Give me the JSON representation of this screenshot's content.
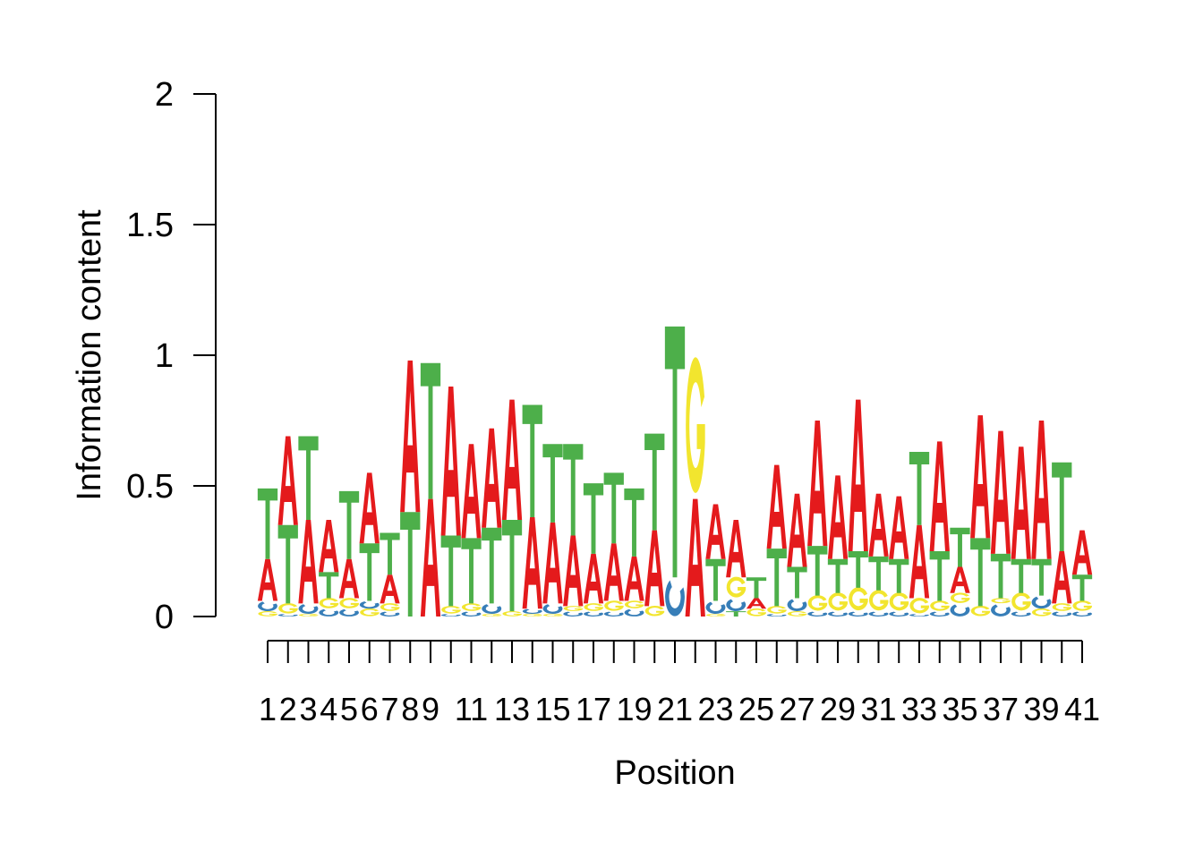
{
  "chart_data": {
    "type": "sequence-logo",
    "xlabel": "Position",
    "ylabel": "Information content",
    "ylim": [
      0,
      2
    ],
    "yticks": [
      {
        "value": 0,
        "label": "0"
      },
      {
        "value": 0.5,
        "label": "0.5"
      },
      {
        "value": 1,
        "label": "1"
      },
      {
        "value": 1.5,
        "label": "1.5"
      },
      {
        "value": 2,
        "label": "2"
      }
    ],
    "positions": [
      1,
      2,
      3,
      4,
      5,
      6,
      7,
      8,
      9,
      10,
      11,
      12,
      13,
      14,
      15,
      16,
      17,
      18,
      19,
      20,
      21,
      22,
      23,
      24,
      25,
      26,
      27,
      28,
      29,
      30,
      31,
      32,
      33,
      34,
      35,
      36,
      37,
      38,
      39,
      40,
      41
    ],
    "xtick_labels": [
      "1",
      "2",
      "3",
      "4",
      "5",
      "6",
      "7",
      "8",
      "9",
      "",
      "11",
      "",
      "13",
      "",
      "15",
      "",
      "17",
      "",
      "19",
      "",
      "21",
      "",
      "23",
      "",
      "25",
      "",
      "27",
      "",
      "29",
      "",
      "31",
      "",
      "33",
      "",
      "35",
      "",
      "37",
      "",
      "39",
      "",
      "41"
    ],
    "letter_colors": {
      "A": "#e41a1c",
      "C": "#377eb8",
      "G": "#f2e52e",
      "T": "#4daf4a"
    },
    "stacks": [
      [
        {
          "l": "G",
          "h": 0.02
        },
        {
          "l": "C",
          "h": 0.04
        },
        {
          "l": "A",
          "h": 0.16
        },
        {
          "l": "T",
          "h": 0.27
        }
      ],
      [
        {
          "l": "C",
          "h": 0.01
        },
        {
          "l": "G",
          "h": 0.04
        },
        {
          "l": "T",
          "h": 0.3
        },
        {
          "l": "A",
          "h": 0.34
        }
      ],
      [
        {
          "l": "G",
          "h": 0.01
        },
        {
          "l": "C",
          "h": 0.04
        },
        {
          "l": "A",
          "h": 0.32
        },
        {
          "l": "T",
          "h": 0.32
        }
      ],
      [
        {
          "l": "C",
          "h": 0.03
        },
        {
          "l": "G",
          "h": 0.04
        },
        {
          "l": "T",
          "h": 0.1
        },
        {
          "l": "A",
          "h": 0.2
        }
      ],
      [
        {
          "l": "C",
          "h": 0.03
        },
        {
          "l": "G",
          "h": 0.04
        },
        {
          "l": "A",
          "h": 0.15
        },
        {
          "l": "T",
          "h": 0.26
        }
      ],
      [
        {
          "l": "G",
          "h": 0.03
        },
        {
          "l": "C",
          "h": 0.03
        },
        {
          "l": "T",
          "h": 0.22
        },
        {
          "l": "A",
          "h": 0.27
        }
      ],
      [
        {
          "l": "C",
          "h": 0.02
        },
        {
          "l": "G",
          "h": 0.03
        },
        {
          "l": "A",
          "h": 0.11
        },
        {
          "l": "T",
          "h": 0.16
        }
      ],
      [
        {
          "l": "T",
          "h": 0.4
        },
        {
          "l": "A",
          "h": 0.58
        }
      ],
      [
        {
          "l": "A",
          "h": 0.45
        },
        {
          "l": "T",
          "h": 0.52
        }
      ],
      [
        {
          "l": "C",
          "h": 0.01
        },
        {
          "l": "G",
          "h": 0.03
        },
        {
          "l": "T",
          "h": 0.27
        },
        {
          "l": "A",
          "h": 0.57
        }
      ],
      [
        {
          "l": "C",
          "h": 0.02
        },
        {
          "l": "G",
          "h": 0.03
        },
        {
          "l": "T",
          "h": 0.25
        },
        {
          "l": "A",
          "h": 0.36
        }
      ],
      [
        {
          "l": "G",
          "h": 0.01
        },
        {
          "l": "C",
          "h": 0.04
        },
        {
          "l": "T",
          "h": 0.29
        },
        {
          "l": "A",
          "h": 0.38
        }
      ],
      [
        {
          "l": "G",
          "h": 0.02
        },
        {
          "l": "T",
          "h": 0.35
        },
        {
          "l": "A",
          "h": 0.46
        }
      ],
      [
        {
          "l": "G",
          "h": 0.01
        },
        {
          "l": "C",
          "h": 0.02
        },
        {
          "l": "A",
          "h": 0.35
        },
        {
          "l": "T",
          "h": 0.43
        }
      ],
      [
        {
          "l": "G",
          "h": 0.01
        },
        {
          "l": "C",
          "h": 0.04
        },
        {
          "l": "A",
          "h": 0.31
        },
        {
          "l": "T",
          "h": 0.3
        }
      ],
      [
        {
          "l": "C",
          "h": 0.02
        },
        {
          "l": "G",
          "h": 0.02
        },
        {
          "l": "A",
          "h": 0.27
        },
        {
          "l": "T",
          "h": 0.35
        }
      ],
      [
        {
          "l": "C",
          "h": 0.02
        },
        {
          "l": "G",
          "h": 0.03
        },
        {
          "l": "A",
          "h": 0.19
        },
        {
          "l": "T",
          "h": 0.27
        }
      ],
      [
        {
          "l": "C",
          "h": 0.02
        },
        {
          "l": "G",
          "h": 0.04
        },
        {
          "l": "A",
          "h": 0.22
        },
        {
          "l": "T",
          "h": 0.27
        }
      ],
      [
        {
          "l": "C",
          "h": 0.03
        },
        {
          "l": "G",
          "h": 0.03
        },
        {
          "l": "A",
          "h": 0.17
        },
        {
          "l": "T",
          "h": 0.26
        }
      ],
      [
        {
          "l": "G",
          "h": 0.04
        },
        {
          "l": "A",
          "h": 0.29
        },
        {
          "l": "T",
          "h": 0.37
        }
      ],
      [
        {
          "l": "C",
          "h": 0.15
        },
        {
          "l": "T",
          "h": 0.96
        }
      ],
      [
        {
          "l": "A",
          "h": 0.45
        },
        {
          "l": "G",
          "h": 0.53
        }
      ],
      [
        {
          "l": "G",
          "h": 0.01
        },
        {
          "l": "C",
          "h": 0.05
        },
        {
          "l": "T",
          "h": 0.16
        },
        {
          "l": "A",
          "h": 0.21
        }
      ],
      [
        {
          "l": "T",
          "h": 0.02
        },
        {
          "l": "C",
          "h": 0.05
        },
        {
          "l": "G",
          "h": 0.08
        },
        {
          "l": "A",
          "h": 0.22
        }
      ],
      [
        {
          "l": "G",
          "h": 0.03
        },
        {
          "l": "A",
          "h": 0.04
        },
        {
          "l": "T",
          "h": 0.08
        }
      ],
      [
        {
          "l": "C",
          "h": 0.01
        },
        {
          "l": "G",
          "h": 0.03
        },
        {
          "l": "T",
          "h": 0.22
        },
        {
          "l": "A",
          "h": 0.32
        }
      ],
      [
        {
          "l": "G",
          "h": 0.02
        },
        {
          "l": "C",
          "h": 0.05
        },
        {
          "l": "T",
          "h": 0.12
        },
        {
          "l": "A",
          "h": 0.28
        }
      ],
      [
        {
          "l": "C",
          "h": 0.02
        },
        {
          "l": "G",
          "h": 0.06
        },
        {
          "l": "T",
          "h": 0.19
        },
        {
          "l": "A",
          "h": 0.48
        }
      ],
      [
        {
          "l": "C",
          "h": 0.02
        },
        {
          "l": "G",
          "h": 0.07
        },
        {
          "l": "T",
          "h": 0.13
        },
        {
          "l": "A",
          "h": 0.32
        }
      ],
      [
        {
          "l": "C",
          "h": 0.02
        },
        {
          "l": "G",
          "h": 0.09
        },
        {
          "l": "T",
          "h": 0.14
        },
        {
          "l": "A",
          "h": 0.58
        }
      ],
      [
        {
          "l": "C",
          "h": 0.02
        },
        {
          "l": "G",
          "h": 0.08
        },
        {
          "l": "T",
          "h": 0.13
        },
        {
          "l": "A",
          "h": 0.24
        }
      ],
      [
        {
          "l": "C",
          "h": 0.02
        },
        {
          "l": "G",
          "h": 0.07
        },
        {
          "l": "T",
          "h": 0.13
        },
        {
          "l": "A",
          "h": 0.24
        }
      ],
      [
        {
          "l": "C",
          "h": 0.01
        },
        {
          "l": "G",
          "h": 0.06
        },
        {
          "l": "A",
          "h": 0.28
        },
        {
          "l": "T",
          "h": 0.28
        }
      ],
      [
        {
          "l": "C",
          "h": 0.02
        },
        {
          "l": "G",
          "h": 0.04
        },
        {
          "l": "T",
          "h": 0.19
        },
        {
          "l": "A",
          "h": 0.42
        }
      ],
      [
        {
          "l": "C",
          "h": 0.05
        },
        {
          "l": "G",
          "h": 0.04
        },
        {
          "l": "A",
          "h": 0.1
        },
        {
          "l": "T",
          "h": 0.15
        }
      ],
      [
        {
          "l": "G",
          "h": 0.04
        },
        {
          "l": "T",
          "h": 0.26
        },
        {
          "l": "A",
          "h": 0.47
        }
      ],
      [
        {
          "l": "C",
          "h": 0.05
        },
        {
          "l": "G",
          "h": 0.02
        },
        {
          "l": "T",
          "h": 0.17
        },
        {
          "l": "A",
          "h": 0.47
        }
      ],
      [
        {
          "l": "C",
          "h": 0.02
        },
        {
          "l": "G",
          "h": 0.07
        },
        {
          "l": "T",
          "h": 0.13
        },
        {
          "l": "A",
          "h": 0.43
        }
      ],
      [
        {
          "l": "G",
          "h": 0.03
        },
        {
          "l": "C",
          "h": 0.05
        },
        {
          "l": "T",
          "h": 0.14
        },
        {
          "l": "A",
          "h": 0.53
        }
      ],
      [
        {
          "l": "C",
          "h": 0.02
        },
        {
          "l": "G",
          "h": 0.03
        },
        {
          "l": "A",
          "h": 0.2
        },
        {
          "l": "T",
          "h": 0.34
        }
      ],
      [
        {
          "l": "C",
          "h": 0.02
        },
        {
          "l": "G",
          "h": 0.04
        },
        {
          "l": "T",
          "h": 0.1
        },
        {
          "l": "A",
          "h": 0.17
        }
      ]
    ]
  }
}
